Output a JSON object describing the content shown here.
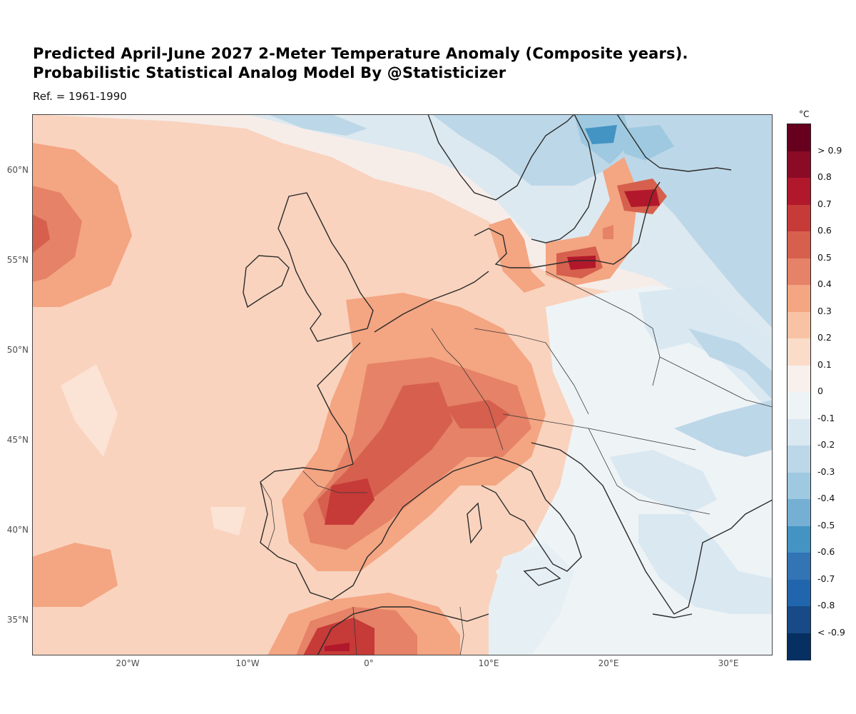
{
  "header": {
    "title_line1": "Predicted April-June 2027 2-Meter Temperature Anomaly (Composite years).",
    "title_line2": "Probabilistic Statistical Analog Model By @Statisticizer",
    "subtitle": "Ref. = 1961-1990"
  },
  "axes": {
    "lat_labels": [
      "60°N",
      "55°N",
      "50°N",
      "45°N",
      "40°N",
      "35°N"
    ],
    "lon_labels": [
      "20°W",
      "10°W",
      "0°",
      "10°E",
      "20°E",
      "30°E"
    ],
    "lat_range": [
      33,
      63
    ],
    "lon_range": [
      -28,
      34
    ]
  },
  "legend": {
    "title": "°C",
    "labels": [
      "> 0.9",
      "0.8",
      "0.7",
      "0.6",
      "0.5",
      "0.4",
      "0.3",
      "0.2",
      "0.1",
      "0",
      "-0.1",
      "-0.2",
      "-0.3",
      "-0.4",
      "-0.5",
      "-0.6",
      "-0.7",
      "-0.8",
      "< -0.9"
    ],
    "colors": [
      "#67001f",
      "#8b0a26",
      "#b2182b",
      "#c63a38",
      "#d6604d",
      "#e58267",
      "#f4a582",
      "#f8c2a4",
      "#fbdcc9",
      "#f7f0ed",
      "#eef3f6",
      "#d9e8f1",
      "#bcd7e8",
      "#9ec9e0",
      "#75b0d4",
      "#4393c3",
      "#3274b4",
      "#2166ac",
      "#174a86",
      "#053061"
    ]
  },
  "colors": {
    "land_border": "#2b2b2b",
    "background_anomaly": "#fbdcc9"
  }
}
